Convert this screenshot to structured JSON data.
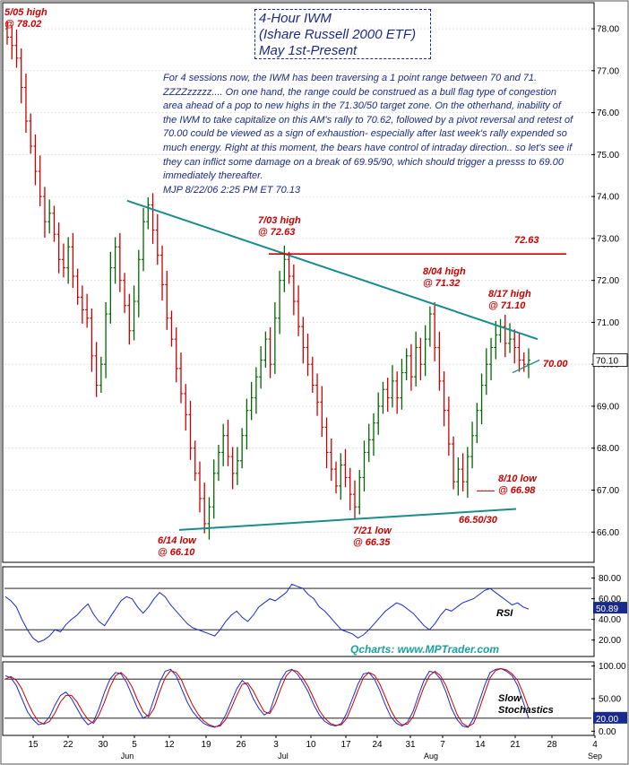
{
  "title": {
    "line1": "4-Hour IWM",
    "line2": "(Ishare Russell 2000 ETF)",
    "line3": "May 1st-Present"
  },
  "commentary": "For 4 sessions now, the IWM has been traversing a 1 point range between 70 and 71.  ZZZZzzzzz.... On one hand, the range could be construed as a bull flag type of congestion area ahead of a pop to new highs in the 71.30/50 target zone. On the otherhand, inability of the IWM to take capitalize on this AM's rally to 70.62, followed by a pivot reversal and retest of 70.00 could be viewed as a sign of exhaustion- especially after last week's rally expended so much energy. Right at this moment, the bears have control of intraday direction.. so let's see if they can inflict some damage on a break of 69.95/90, which should trigger a presss to 69.00 immediately thereafter.",
  "signature": "MJP  8/22/06  2:25 PM ET 70.13",
  "credit": "Qcharts: www.MPTrader.com",
  "annotations": {
    "high_0505_a": "5/05 high",
    "high_0505_b": "@ 78.02",
    "high_0703_a": "7/03 high",
    "high_0703_b": "@ 72.63",
    "high_0804_a": "8/04 high",
    "high_0804_b": "@ 71.32",
    "high_0817_a": "8/17 high",
    "high_0817_b": "@ 71.10",
    "low_0614_a": "6/14 low",
    "low_0614_b": "@ 66.10",
    "low_0721_a": "7/21 low",
    "low_0721_b": "@ 66.35",
    "low_0810_a": "8/10 low",
    "low_0810_b": "@ 66.98",
    "level_7263": "72.63",
    "level_7000": "70.00",
    "zone_6650": "66.50/30"
  },
  "rsi_label": "RSI",
  "stoch_label_1": "Slow",
  "stoch_label_2": "Stochastics",
  "price_last_label": "70.10",
  "rsi_last_label": "50.89",
  "stoch_last_label": "20.00",
  "colors": {
    "bar_up": "#006600",
    "bar_down": "#cc0000",
    "trendline": "#1a8c8c",
    "level": "#cc0000",
    "rsi": "#1a2acc",
    "stoch_k": "#1a2acc",
    "stoch_d": "#cc0000",
    "label_box": "#1a2a8a",
    "annotation": "#cc0000"
  },
  "chart_data": [
    {
      "type": "line",
      "name": "price",
      "y_axis_ticks": [
        "78.00",
        "77.00",
        "76.00",
        "75.00",
        "74.00",
        "73.00",
        "72.00",
        "71.00",
        "70.00",
        "69.00",
        "68.00",
        "67.00",
        "66.00"
      ],
      "ylim": [
        65.3,
        78.6
      ],
      "x_tick_labels": [
        "15",
        "22",
        "30",
        "5",
        "12",
        "19",
        "26",
        "3",
        "10",
        "17",
        "24",
        "31",
        "7",
        "14",
        "21",
        "28",
        "4"
      ],
      "month_labels": [
        "Jun",
        "Jul",
        "Aug",
        "Sep"
      ],
      "key_points": [
        {
          "date": "5/05",
          "value": 78.02,
          "label": "high"
        },
        {
          "date": "6/14",
          "value": 66.1,
          "label": "low"
        },
        {
          "date": "7/03",
          "value": 72.63,
          "label": "high"
        },
        {
          "date": "7/21",
          "value": 66.35,
          "label": "low"
        },
        {
          "date": "8/04",
          "value": 71.32,
          "label": "high"
        },
        {
          "date": "8/10",
          "value": 66.98,
          "label": "low"
        },
        {
          "date": "8/17",
          "value": 71.1,
          "label": "high"
        }
      ],
      "closes": [
        77.8,
        77.6,
        77.3,
        76.6,
        75.8,
        75.2,
        74.6,
        74.0,
        73.4,
        73.6,
        73.1,
        72.5,
        72.3,
        72.8,
        72.1,
        71.6,
        71.3,
        71.1,
        70.2,
        69.5,
        70.0,
        71.2,
        72.3,
        72.8,
        72.0,
        71.4,
        70.8,
        71.5,
        72.5,
        73.4,
        73.8,
        73.2,
        72.6,
        71.9,
        71.1,
        70.6,
        69.9,
        69.3,
        68.8,
        68.0,
        67.4,
        66.8,
        66.2,
        66.6,
        67.4,
        67.9,
        68.3,
        67.8,
        67.4,
        67.7,
        68.3,
        68.9,
        69.2,
        69.7,
        70.1,
        70.6,
        70.0,
        71.1,
        72.0,
        72.5,
        72.1,
        71.5,
        70.9,
        70.4,
        70.0,
        69.5,
        69.1,
        68.5,
        67.9,
        67.5,
        67.1,
        67.6,
        67.3,
        66.9,
        66.6,
        67.3,
        67.9,
        68.2,
        68.6,
        69.0,
        69.4,
        69.2,
        69.6,
        69.2,
        69.8,
        70.2,
        69.7,
        70.4,
        70.0,
        70.6,
        71.2,
        70.4,
        69.6,
        68.9,
        68.1,
        67.2,
        67.5,
        67.2,
        67.8,
        68.3,
        68.9,
        69.5,
        70.0,
        70.4,
        70.7,
        70.9,
        70.5,
        70.6,
        70.4,
        70.1,
        70.0,
        70.1
      ],
      "trendlines": [
        {
          "from": {
            "date": "5/31",
            "value": 73.9
          },
          "to": {
            "date": "8/21",
            "value": 70.6
          },
          "label": "resistance"
        },
        {
          "from": {
            "date": "6/14",
            "value": 66.05
          },
          "to": {
            "date": "8/18",
            "value": 66.55
          },
          "label": "support"
        }
      ],
      "horizontal_levels": [
        72.63
      ]
    },
    {
      "type": "line",
      "name": "RSI",
      "y_axis_ticks": [
        "80.00",
        "60.00",
        "40.00",
        "20.00"
      ],
      "ylim": [
        5,
        90
      ],
      "reference_lines": [
        70,
        30
      ],
      "last_value": 50.89,
      "values": [
        62,
        58,
        52,
        40,
        30,
        22,
        18,
        20,
        24,
        30,
        28,
        35,
        40,
        44,
        50,
        55,
        45,
        38,
        34,
        42,
        50,
        58,
        62,
        60,
        52,
        46,
        52,
        60,
        66,
        62,
        54,
        48,
        42,
        36,
        32,
        30,
        28,
        26,
        24,
        30,
        38,
        44,
        48,
        42,
        38,
        44,
        52,
        56,
        60,
        58,
        62,
        66,
        74,
        72,
        70,
        64,
        60,
        52,
        48,
        42,
        36,
        30,
        28,
        26,
        22,
        25,
        30,
        36,
        42,
        48,
        52,
        56,
        54,
        50,
        46,
        40,
        34,
        30,
        36,
        44,
        50,
        48,
        52,
        56,
        58,
        60,
        64,
        68,
        70,
        66,
        62,
        58,
        54,
        56,
        52,
        50
      ]
    },
    {
      "type": "line",
      "name": "Slow Stochastics",
      "y_axis_ticks": [
        "100.00",
        "50.00",
        "0.00"
      ],
      "ylim": [
        -5,
        105
      ],
      "reference_lines": [
        80,
        20
      ],
      "last_value": 20.0,
      "series": [
        {
          "name": "%K",
          "values": [
            85,
            82,
            70,
            50,
            30,
            18,
            10,
            12,
            22,
            40,
            55,
            60,
            50,
            35,
            20,
            10,
            15,
            35,
            60,
            80,
            90,
            88,
            75,
            55,
            35,
            20,
            25,
            50,
            75,
            92,
            95,
            85,
            65,
            45,
            30,
            20,
            12,
            8,
            6,
            10,
            25,
            45,
            65,
            78,
            70,
            50,
            35,
            25,
            30,
            55,
            78,
            92,
            95,
            88,
            75,
            60,
            40,
            25,
            15,
            10,
            8,
            12,
            28,
            50,
            72,
            88,
            90,
            80,
            62,
            40,
            22,
            12,
            8,
            14,
            30,
            55,
            78,
            92,
            90,
            80,
            60,
            35,
            18,
            8,
            6,
            20,
            45,
            70,
            90,
            95,
            96,
            92,
            85,
            70,
            45,
            20
          ]
        },
        {
          "name": "%D",
          "values": [
            80,
            84,
            78,
            65,
            45,
            28,
            15,
            11,
            15,
            28,
            45,
            55,
            55,
            45,
            30,
            18,
            12,
            25,
            45,
            68,
            85,
            90,
            82,
            68,
            48,
            30,
            22,
            35,
            60,
            82,
            93,
            90,
            78,
            58,
            40,
            26,
            16,
            10,
            7,
            8,
            18,
            35,
            55,
            72,
            74,
            62,
            45,
            30,
            27,
            42,
            65,
            85,
            94,
            92,
            82,
            68,
            50,
            32,
            20,
            12,
            9,
            10,
            20,
            40,
            62,
            82,
            90,
            86,
            72,
            52,
            32,
            17,
            10,
            11,
            22,
            45,
            68,
            85,
            92,
            85,
            70,
            48,
            26,
            12,
            7,
            12,
            33,
            58,
            82,
            93,
            96,
            94,
            88,
            78,
            58,
            35
          ]
        }
      ]
    }
  ]
}
